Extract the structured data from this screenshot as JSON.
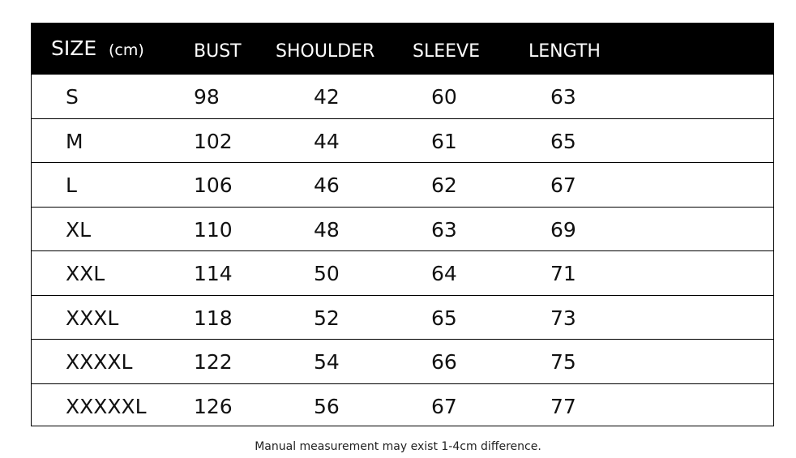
{
  "header": {
    "size": "SIZE",
    "unit": "(cm)",
    "bust": "BUST",
    "shoulder": "SHOULDER",
    "sleeve": "SLEEVE",
    "length": "LENGTH"
  },
  "rows": [
    {
      "size": "S",
      "bust": "98",
      "shoulder": "42",
      "sleeve": "60",
      "length": "63"
    },
    {
      "size": "M",
      "bust": "102",
      "shoulder": "44",
      "sleeve": "61",
      "length": "65"
    },
    {
      "size": "L",
      "bust": "106",
      "shoulder": "46",
      "sleeve": "62",
      "length": "67"
    },
    {
      "size": "XL",
      "bust": "110",
      "shoulder": "48",
      "sleeve": "63",
      "length": "69"
    },
    {
      "size": "XXL",
      "bust": "114",
      "shoulder": "50",
      "sleeve": "64",
      "length": "71"
    },
    {
      "size": "XXXL",
      "bust": "118",
      "shoulder": "52",
      "sleeve": "65",
      "length": "73"
    },
    {
      "size": "XXXXL",
      "bust": "122",
      "shoulder": "54",
      "sleeve": "66",
      "length": "75"
    },
    {
      "size": "XXXXXL",
      "bust": "126",
      "shoulder": "56",
      "sleeve": "67",
      "length": "77"
    }
  ],
  "note": "Manual measurement may exist 1-4cm difference."
}
